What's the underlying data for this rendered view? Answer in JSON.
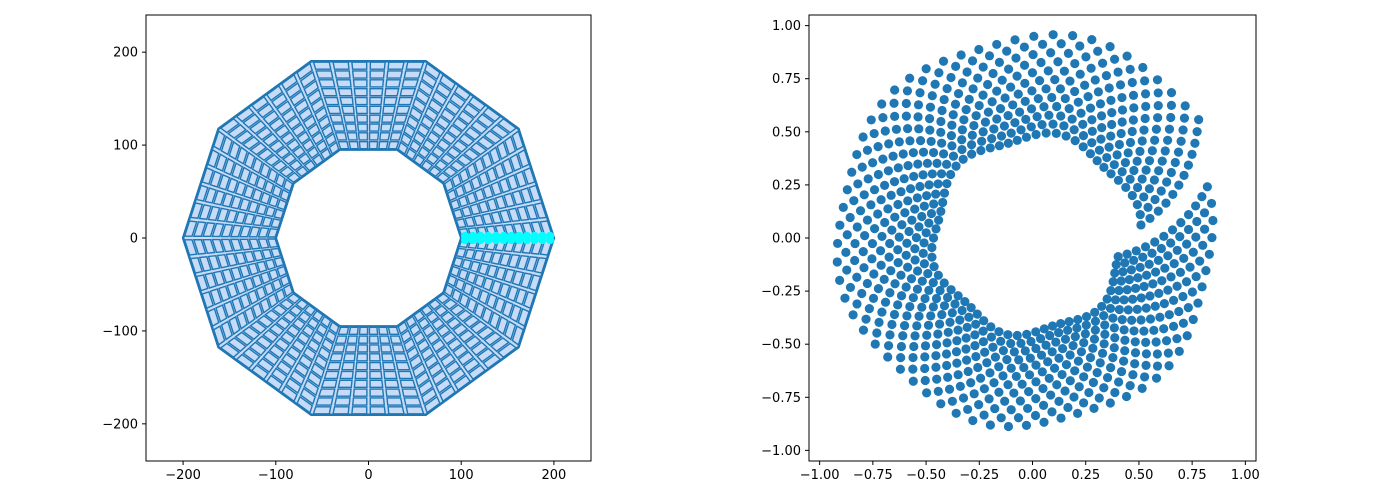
{
  "chart_data": [
    {
      "type": "mesh",
      "title": "",
      "xlabel": "",
      "ylabel": "",
      "xlim": [
        -240,
        240
      ],
      "ylim": [
        -240,
        240
      ],
      "xticks": [
        -200,
        -100,
        0,
        100,
        200
      ],
      "yticks": [
        -200,
        -100,
        0,
        100,
        200
      ],
      "xtick_labels": [
        "−200",
        "−100",
        "0",
        "100",
        "200"
      ],
      "ytick_labels": [
        "−200",
        "−100",
        "0",
        "100",
        "200"
      ],
      "grid": false,
      "outer_polygon": {
        "sides": 10,
        "radius": 200
      },
      "inner_polygon": {
        "sides": 10,
        "radius": 100
      },
      "highlight_band": {
        "x_range": [
          100,
          200
        ],
        "y": 0
      },
      "colors": {
        "cell_fill": "#c6dbf7",
        "cell_edge": "#1f77b4",
        "highlight": "#00ffff"
      }
    },
    {
      "type": "scatter",
      "title": "",
      "xlabel": "",
      "ylabel": "",
      "xlim": [
        -1.05,
        1.05
      ],
      "ylim": [
        -1.05,
        1.05
      ],
      "xticks": [
        -1.0,
        -0.75,
        -0.5,
        -0.25,
        0.0,
        0.25,
        0.5,
        0.75,
        1.0
      ],
      "yticks": [
        -1.0,
        -0.75,
        -0.5,
        -0.25,
        0.0,
        0.25,
        0.5,
        0.75,
        1.0
      ],
      "xtick_labels": [
        "−1.00",
        "−0.75",
        "−0.50",
        "−0.25",
        "0.00",
        "0.25",
        "0.50",
        "0.75",
        "1.00"
      ],
      "ytick_labels": [
        "−1.00",
        "−0.75",
        "−0.50",
        "−0.25",
        "0.00",
        "0.25",
        "0.50",
        "0.75",
        "1.00"
      ],
      "grid": false,
      "point_cloud": {
        "shape": "spiral annulus",
        "inner_radius": 0.5,
        "outer_radius": 0.97,
        "radial_layers": 12,
        "angle_gap_at": 0.0
      },
      "colors": {
        "points": "#1f77b4"
      }
    }
  ]
}
